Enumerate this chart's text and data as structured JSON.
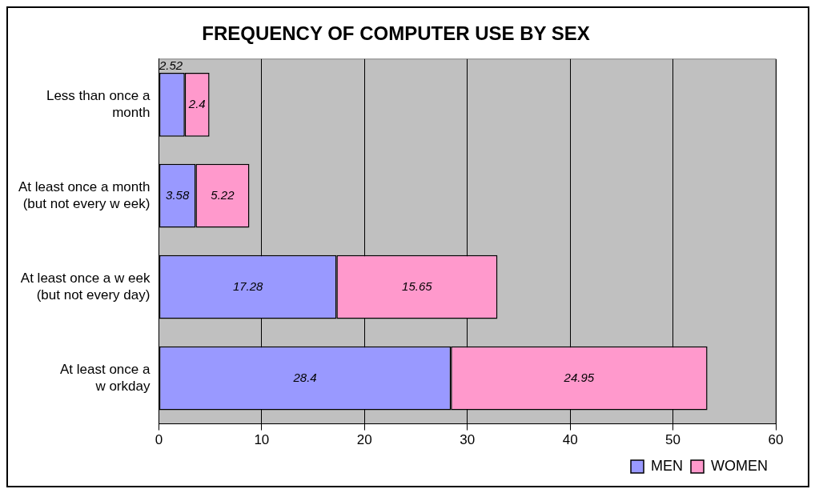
{
  "chart_data": {
    "type": "bar",
    "orientation": "horizontal",
    "stacked": true,
    "title": "FREQUENCY OF COMPUTER USE BY SEX",
    "categories": [
      "Less than once a\nmonth",
      "At least once a month\n(but not every w eek)",
      "At least once a w eek\n(but not every day)",
      "At least once a\nw orkday"
    ],
    "series": [
      {
        "name": "MEN",
        "color": "#9999ff",
        "values": [
          2.52,
          3.58,
          17.28,
          28.4
        ]
      },
      {
        "name": "WOMEN",
        "color": "#ff99cc",
        "values": [
          2.4,
          5.22,
          15.65,
          24.95
        ]
      }
    ],
    "xlim": [
      0,
      60
    ],
    "xticks": [
      0,
      10,
      20,
      30,
      40,
      50,
      60
    ],
    "grid": "x",
    "legend": "bottom right",
    "data_labels": true
  }
}
